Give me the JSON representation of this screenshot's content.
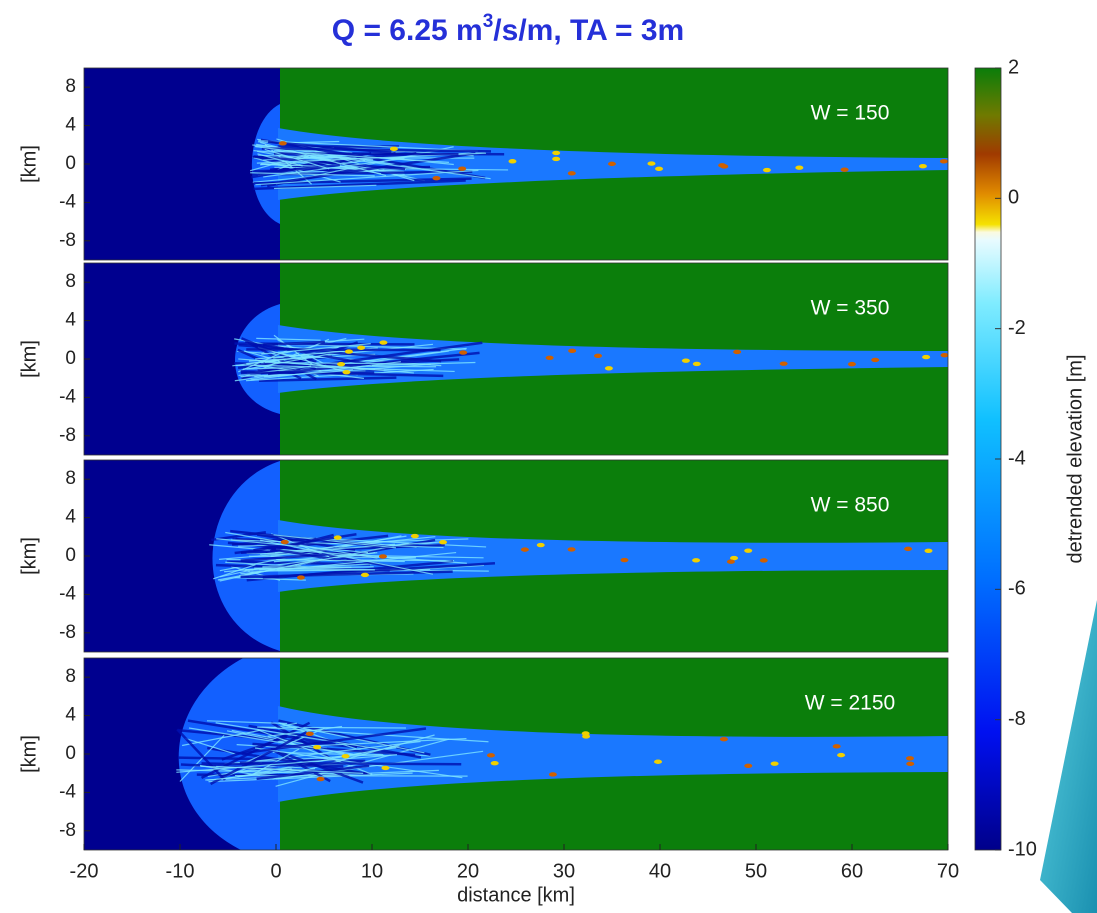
{
  "title": [
    {
      "text": "Q = 6.25 m"
    },
    {
      "text": "3",
      "sup": true
    },
    {
      "text": "/s/m, TA = 3m"
    }
  ],
  "chart_data": [
    {
      "type": "map",
      "annotation": "W = 150",
      "ylabel": "[km]",
      "xlim": [
        -20,
        70
      ],
      "ylim": [
        -10,
        10
      ],
      "yticks": [
        8,
        4,
        0,
        -4,
        -8
      ]
    },
    {
      "type": "map",
      "annotation": "W = 350",
      "ylabel": "[km]",
      "xlim": [
        -20,
        70
      ],
      "ylim": [
        -10,
        10
      ],
      "yticks": [
        8,
        4,
        0,
        -4,
        -8
      ]
    },
    {
      "type": "map",
      "annotation": "W = 850",
      "ylabel": "[km]",
      "xlim": [
        -20,
        70
      ],
      "ylim": [
        -10,
        10
      ],
      "yticks": [
        8,
        4,
        0,
        -4,
        -8
      ]
    },
    {
      "type": "map",
      "annotation": "W = 2150",
      "ylabel": "[km]",
      "xlim": [
        -20,
        70
      ],
      "ylim": [
        -10,
        10
      ],
      "yticks": [
        8,
        4,
        0,
        -4,
        -8
      ],
      "xticks": [
        -20,
        -10,
        0,
        10,
        20,
        30,
        40,
        50,
        60,
        70
      ],
      "xlabel": "distance [km]"
    }
  ],
  "colorbar": {
    "label": "detrended elevation [m]",
    "lim": [
      -10,
      2
    ],
    "ticks": [
      2,
      0,
      -2,
      -4,
      -6,
      -8,
      -10
    ]
  }
}
